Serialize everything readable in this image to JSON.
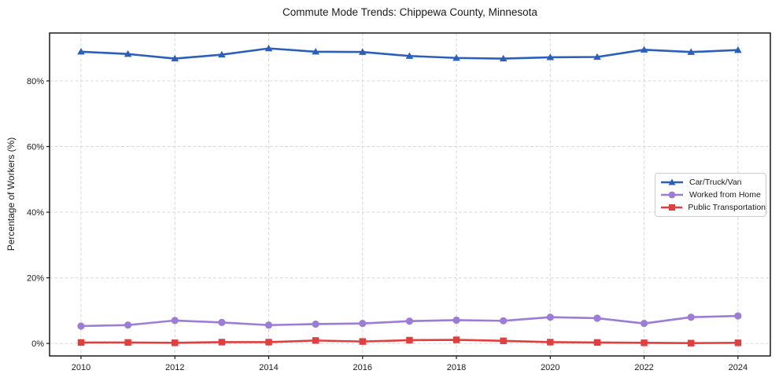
{
  "figure": {
    "background": "#ffffff",
    "spine_color": "#1a1a1a",
    "tick_text_color": "#1a1a1a"
  },
  "chart_data": {
    "type": "line",
    "title": "Commute Mode Trends: Chippewa County, Minnesota",
    "xlabel": "",
    "ylabel": "Percentage of Workers (%)",
    "x": [
      2010,
      2011,
      2012,
      2013,
      2014,
      2015,
      2016,
      2017,
      2018,
      2019,
      2020,
      2021,
      2022,
      2023,
      2024
    ],
    "x_ticks": [
      2010,
      2012,
      2014,
      2016,
      2018,
      2020,
      2022,
      2024
    ],
    "y_ticks": [
      0,
      20,
      40,
      60,
      80
    ],
    "y_tick_labels": [
      "0%",
      "20%",
      "40%",
      "60%",
      "80%"
    ],
    "xlim": [
      2009.33,
      2024.69
    ],
    "ylim": [
      -3.8,
      94.6
    ],
    "grid": {
      "show": true,
      "style": "dashed",
      "color": "#d9d9d9"
    },
    "legend": {
      "position": "center-right"
    },
    "series": [
      {
        "name": "Car/Truck/Van",
        "color": "#2b5fbe",
        "marker": "triangle",
        "values": [
          88.9,
          88.2,
          86.8,
          88.0,
          89.9,
          88.9,
          88.8,
          87.6,
          87.0,
          86.8,
          87.2,
          87.3,
          89.5,
          88.8,
          89.4
        ]
      },
      {
        "name": "Worked from Home",
        "color": "#9b7cd9",
        "marker": "circle",
        "values": [
          5.3,
          5.6,
          7.0,
          6.4,
          5.6,
          5.9,
          6.1,
          6.8,
          7.1,
          6.9,
          8.0,
          7.7,
          6.1,
          8.0,
          8.4
        ]
      },
      {
        "name": "Public Transportation",
        "color": "#e23e3e",
        "marker": "square",
        "values": [
          0.3,
          0.3,
          0.2,
          0.4,
          0.4,
          0.9,
          0.6,
          1.0,
          1.1,
          0.8,
          0.4,
          0.3,
          0.2,
          0.1,
          0.2
        ]
      }
    ]
  }
}
